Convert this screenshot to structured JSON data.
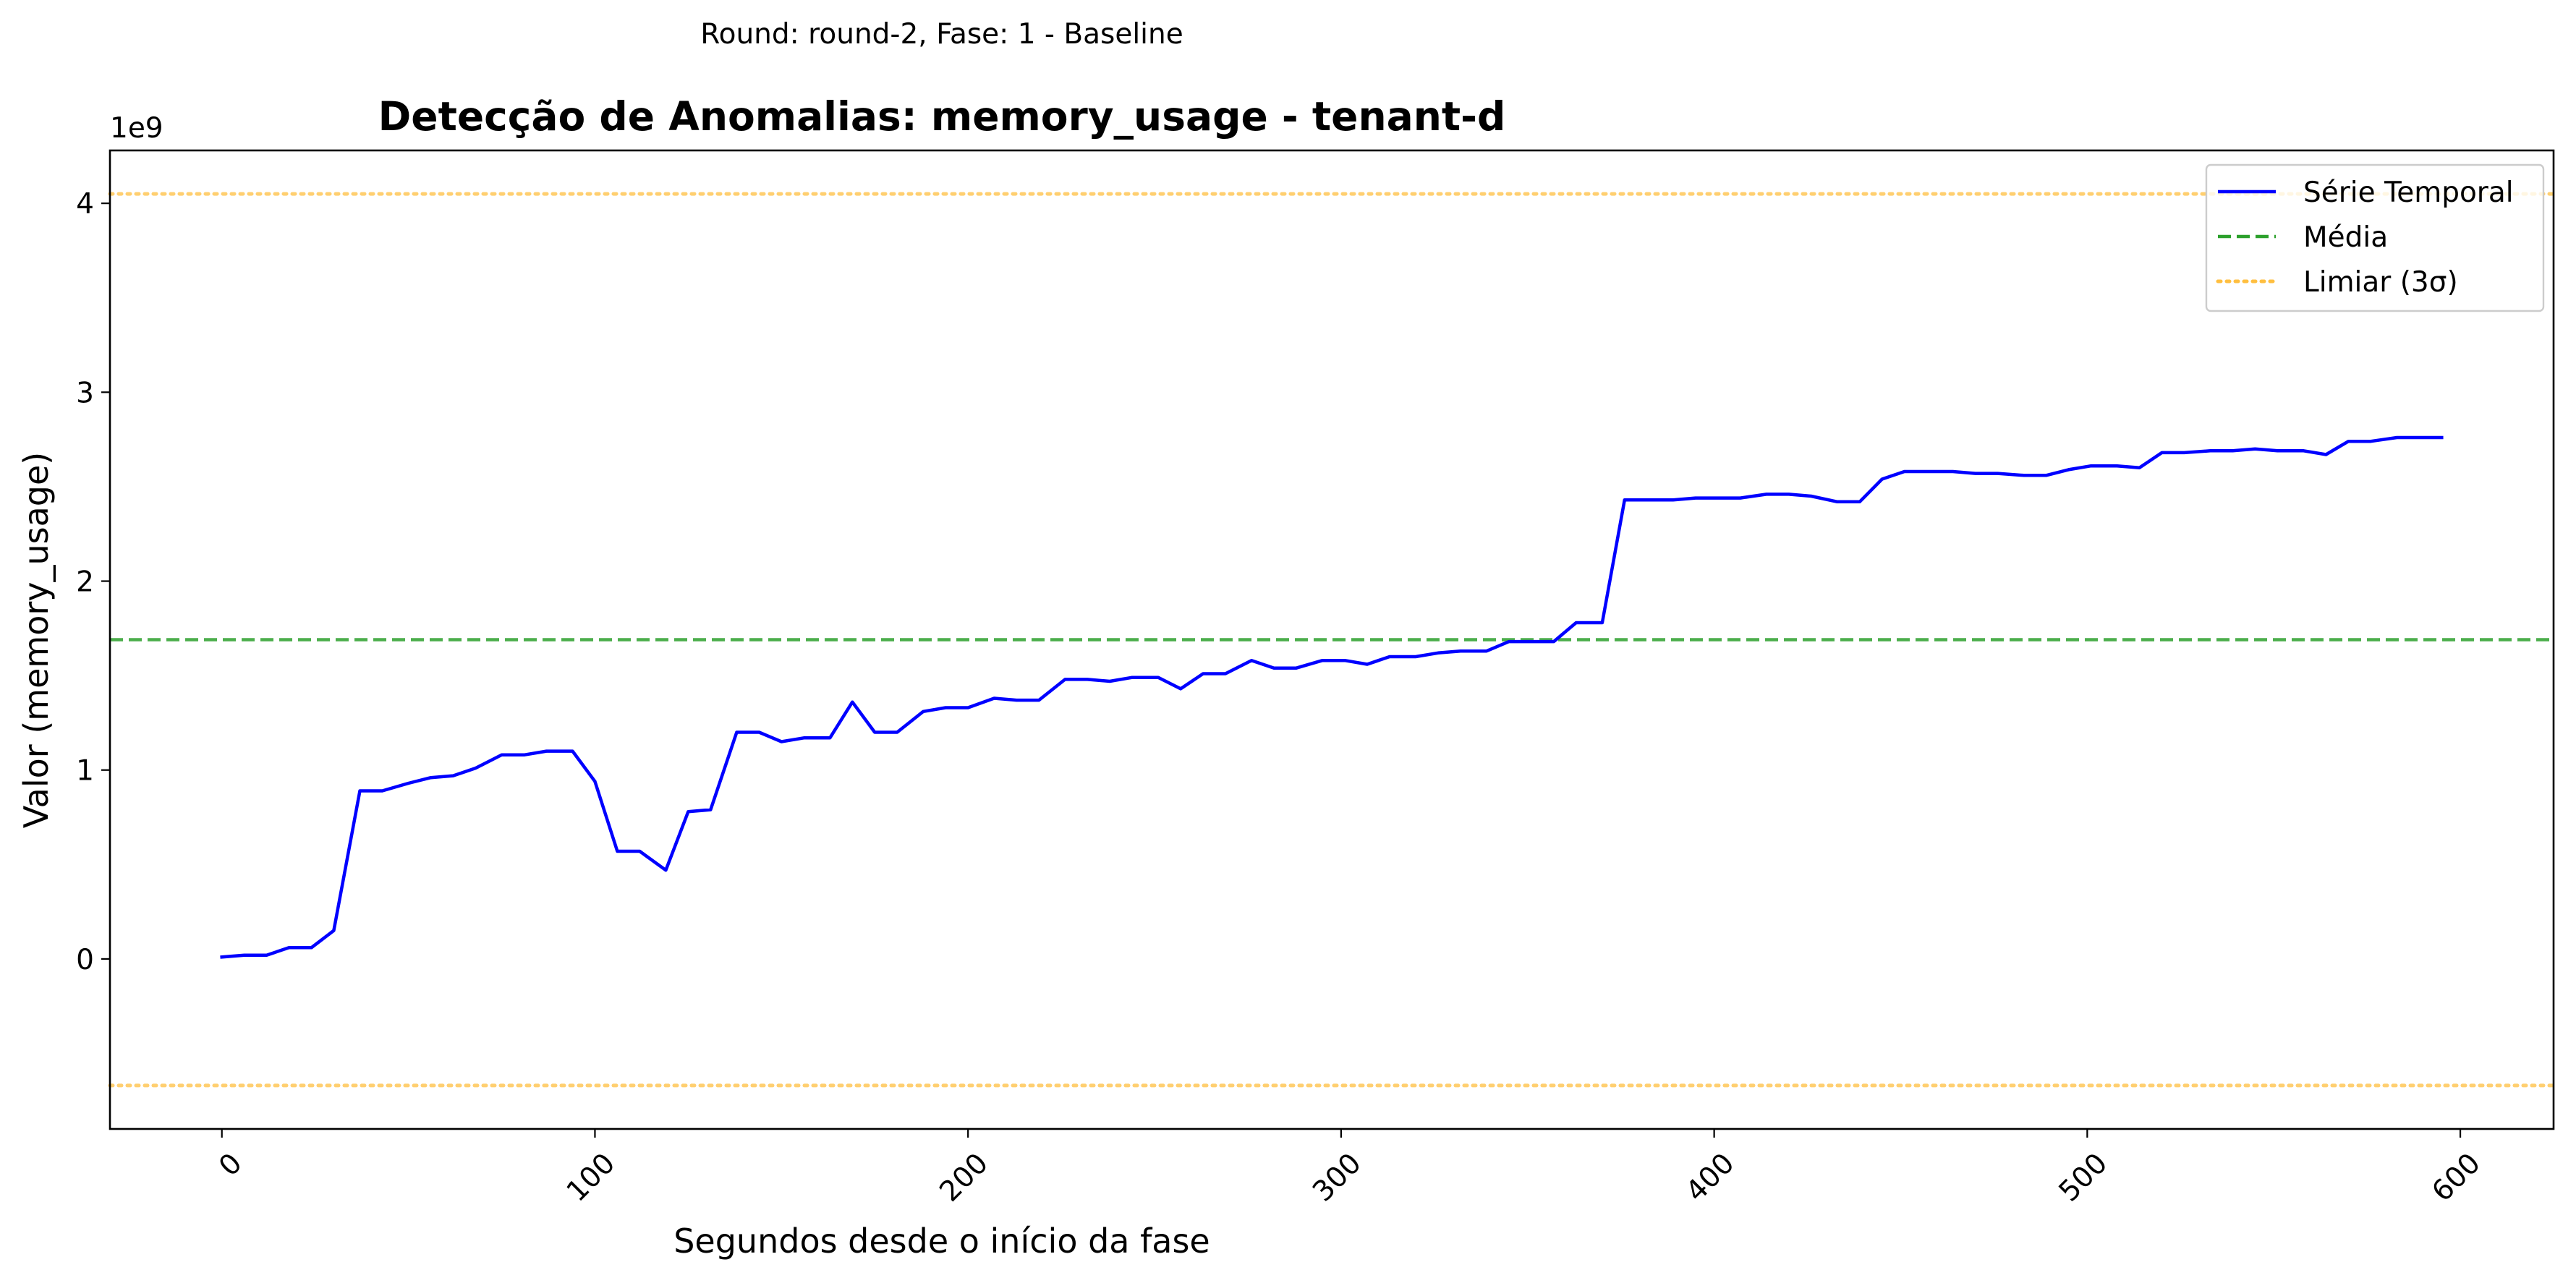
{
  "suptitle": "Round: round-2, Fase: 1 - Baseline",
  "chart_data": {
    "type": "line",
    "title": "Detecção de Anomalias: memory_usage - tenant-d",
    "xlabel": "Segundos desde o início da fase",
    "ylabel": "Valor (memory_usage)",
    "y_offset_label": "1e9",
    "xlim": [
      -30,
      625
    ],
    "ylim": [
      -900000000.0,
      4280000000.0
    ],
    "x_ticks": [
      0,
      100,
      200,
      300,
      400,
      500,
      600
    ],
    "x_tick_labels": [
      "0",
      "100",
      "200",
      "300",
      "400",
      "500",
      "600"
    ],
    "x_tick_rotation": 45,
    "y_ticks": [
      0,
      1000000000.0,
      2000000000.0,
      3000000000.0,
      4000000000.0
    ],
    "y_tick_labels": [
      "0",
      "1",
      "2",
      "3",
      "4"
    ],
    "grid": false,
    "legend_position": "top-right",
    "series": [
      {
        "name": "Série Temporal",
        "color": "#0000ff",
        "style": "solid",
        "x": [
          0,
          6,
          12,
          18,
          24,
          30,
          37,
          43,
          50,
          56,
          62,
          68,
          75,
          81,
          87,
          94,
          100,
          106,
          112,
          119,
          125,
          131,
          138,
          144,
          150,
          156,
          163,
          169,
          175,
          181,
          188,
          194,
          200,
          207,
          213,
          219,
          226,
          232,
          238,
          244,
          251,
          257,
          263,
          269,
          276,
          282,
          288,
          295,
          301,
          307,
          313,
          320,
          326,
          332,
          339,
          345,
          351,
          357,
          363,
          370,
          376,
          382,
          389,
          395,
          401,
          407,
          414,
          420,
          426,
          433,
          439,
          445,
          451,
          457,
          464,
          470,
          476,
          483,
          489,
          495,
          501,
          508,
          514,
          520,
          526,
          533,
          539,
          545,
          551,
          558,
          564,
          570,
          576,
          583,
          589,
          595
        ],
        "y": [
          10000000.0,
          20000000.0,
          20000000.0,
          60000000.0,
          60000000.0,
          150000000.0,
          890000000.0,
          890000000.0,
          930000000.0,
          960000000.0,
          970000000.0,
          1010000000.0,
          1080000000.0,
          1080000000.0,
          1100000000.0,
          1100000000.0,
          940000000.0,
          570000000.0,
          570000000.0,
          470000000.0,
          780000000.0,
          790000000.0,
          1200000000.0,
          1200000000.0,
          1150000000.0,
          1170000000.0,
          1170000000.0,
          1360000000.0,
          1200000000.0,
          1200000000.0,
          1310000000.0,
          1330000000.0,
          1330000000.0,
          1380000000.0,
          1370000000.0,
          1370000000.0,
          1480000000.0,
          1480000000.0,
          1470000000.0,
          1490000000.0,
          1490000000.0,
          1430000000.0,
          1510000000.0,
          1510000000.0,
          1580000000.0,
          1540000000.0,
          1540000000.0,
          1580000000.0,
          1580000000.0,
          1560000000.0,
          1600000000.0,
          1600000000.0,
          1620000000.0,
          1630000000.0,
          1630000000.0,
          1680000000.0,
          1680000000.0,
          1680000000.0,
          1780000000.0,
          1780000000.0,
          2430000000.0,
          2430000000.0,
          2430000000.0,
          2440000000.0,
          2440000000.0,
          2440000000.0,
          2460000000.0,
          2460000000.0,
          2450000000.0,
          2420000000.0,
          2420000000.0,
          2540000000.0,
          2580000000.0,
          2580000000.0,
          2580000000.0,
          2570000000.0,
          2570000000.0,
          2560000000.0,
          2560000000.0,
          2590000000.0,
          2610000000.0,
          2610000000.0,
          2600000000.0,
          2680000000.0,
          2680000000.0,
          2690000000.0,
          2690000000.0,
          2700000000.0,
          2690000000.0,
          2690000000.0,
          2670000000.0,
          2740000000.0,
          2740000000.0,
          2760000000.0,
          2760000000.0,
          2760000000.0
        ]
      }
    ],
    "reference_lines": [
      {
        "name": "Média",
        "color": "#2ca02c",
        "style": "dashed",
        "y": 1690000000.0
      },
      {
        "name": "Limiar (3σ)",
        "color": "#ffbf40",
        "style": "dotted",
        "y": 4050000000.0
      },
      {
        "name": "Limiar (3σ)",
        "color": "#ffbf40",
        "style": "dotted",
        "y": -670000000.0
      }
    ],
    "legend": [
      {
        "label": "Série Temporal",
        "color": "#0000ff",
        "style": "solid"
      },
      {
        "label": "Média",
        "color": "#2ca02c",
        "style": "dashed"
      },
      {
        "label": "Limiar (3σ)",
        "color": "#ffbf40",
        "style": "dotted"
      }
    ]
  }
}
